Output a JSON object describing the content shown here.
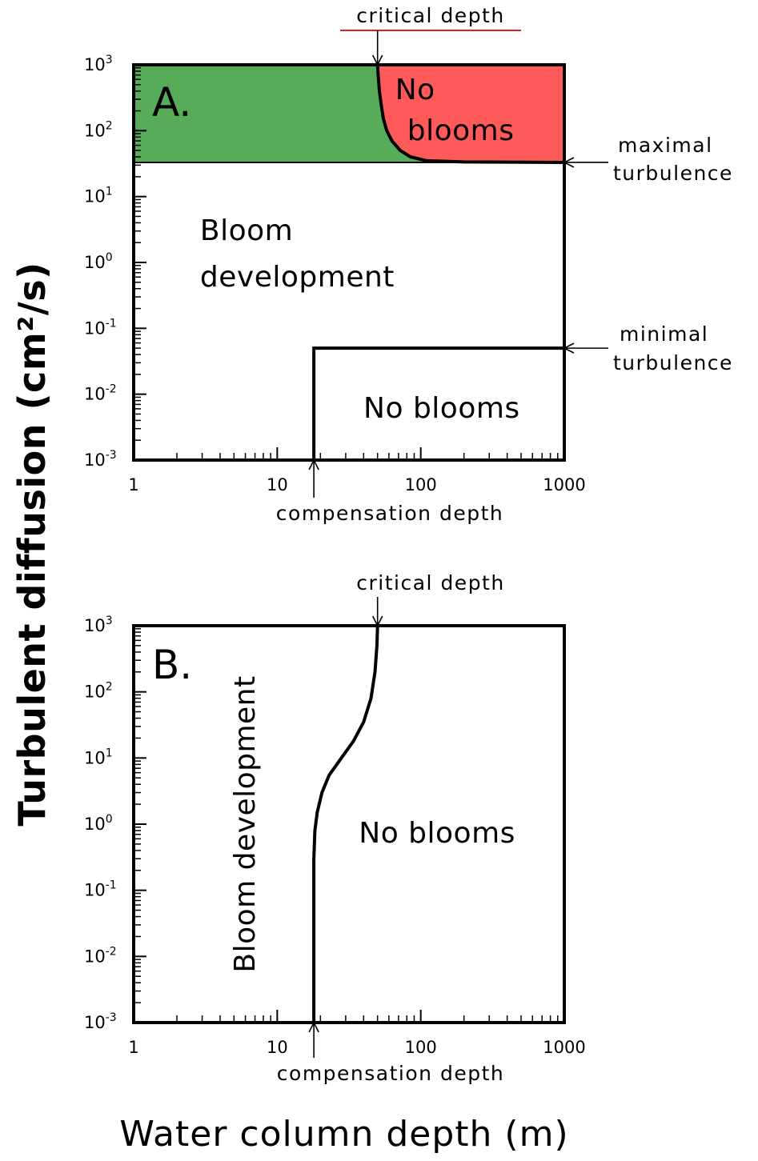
{
  "figure": {
    "ylabel": "Turbulent diffusion (cm²/s)",
    "xlabel": "Water column depth (m)"
  },
  "colors": {
    "bloom_zone_green": "#58ab58",
    "no_bloom_zone_red": "#ff5a5a",
    "panel_a_letter": "#0e4a0e",
    "panel_a_no_blooms_text": "#b00000",
    "critical_depth_underline": "#e02020"
  },
  "chart_data": [
    {
      "type": "area",
      "panel": "A.",
      "x_scale": "log",
      "y_scale": "log",
      "xlim": [
        1,
        1000
      ],
      "ylim": [
        0.001,
        1000
      ],
      "x_ticks": [
        {
          "value": 1,
          "label": "1"
        },
        {
          "value": 10,
          "label": "10"
        },
        {
          "value": 100,
          "label": "100"
        },
        {
          "value": 1000,
          "label": "1000"
        }
      ],
      "y_ticks": [
        {
          "value": 0.001,
          "base": "10",
          "exp": "-3"
        },
        {
          "value": 0.01,
          "base": "10",
          "exp": "-2"
        },
        {
          "value": 0.1,
          "base": "10",
          "exp": "-1"
        },
        {
          "value": 1,
          "base": "10",
          "exp": "0"
        },
        {
          "value": 10,
          "base": "10",
          "exp": "1"
        },
        {
          "value": 100,
          "base": "10",
          "exp": "2"
        },
        {
          "value": 1000,
          "base": "10",
          "exp": "3"
        }
      ],
      "maximal_turbulence": 33,
      "minimal_turbulence": 0.05,
      "compensation_depth": 18,
      "critical_curve": [
        [
          50,
          1000
        ],
        [
          50.5,
          700
        ],
        [
          51.5,
          400
        ],
        [
          53,
          250
        ],
        [
          55,
          150
        ],
        [
          58,
          100
        ],
        [
          63,
          70
        ],
        [
          72,
          50
        ],
        [
          85,
          40
        ],
        [
          110,
          35
        ],
        [
          200,
          33.5
        ],
        [
          1000,
          33
        ]
      ],
      "regions": [
        {
          "id": "bloom",
          "label": "Bloom development",
          "lines": [
            "Bloom",
            "development"
          ],
          "at": [
            2.9,
            0.9
          ]
        },
        {
          "id": "no-blooms-top",
          "label": "No blooms",
          "lines": [
            "No",
            "blooms"
          ],
          "at": [
            190,
            160
          ]
        },
        {
          "id": "no-blooms-bottom",
          "label": "No blooms",
          "lines": [
            "No blooms"
          ],
          "at": [
            140,
            0.0145
          ]
        }
      ],
      "annotations": [
        {
          "id": "critical-depth",
          "text": "critical depth",
          "points_to": [
            50,
            1000
          ],
          "lines": [
            "critical depth"
          ]
        },
        {
          "id": "maximal-turbulence",
          "text": "maximal turbulence",
          "points_to": [
            1000,
            33
          ],
          "lines": [
            "maximal",
            "turbulence"
          ]
        },
        {
          "id": "minimal-turbulence",
          "text": "minimal turbulence",
          "points_to": [
            1000,
            0.05
          ],
          "lines": [
            "minimal",
            "turbulence"
          ]
        },
        {
          "id": "compensation-depth",
          "text": "compensation depth",
          "points_to": [
            18,
            0.001
          ],
          "lines": [
            "compensation depth"
          ]
        }
      ]
    },
    {
      "type": "line",
      "panel": "B.",
      "x_scale": "log",
      "y_scale": "log",
      "xlim": [
        1,
        1000
      ],
      "ylim": [
        0.001,
        1000
      ],
      "x_ticks": [
        {
          "value": 1,
          "label": "1"
        },
        {
          "value": 10,
          "label": "10"
        },
        {
          "value": 100,
          "label": "100"
        },
        {
          "value": 1000,
          "label": "1000"
        }
      ],
      "y_ticks": [
        {
          "value": 0.001,
          "base": "10",
          "exp": "-3"
        },
        {
          "value": 0.01,
          "base": "10",
          "exp": "-2"
        },
        {
          "value": 0.1,
          "base": "10",
          "exp": "-1"
        },
        {
          "value": 1,
          "base": "10",
          "exp": "0"
        },
        {
          "value": 10,
          "base": "10",
          "exp": "1"
        },
        {
          "value": 100,
          "base": "10",
          "exp": "2"
        },
        {
          "value": 1000,
          "base": "10",
          "exp": "3"
        }
      ],
      "compensation_depth": 18,
      "critical_depth": 50,
      "critical_curve": [
        [
          18,
          0.001
        ],
        [
          18,
          0.05
        ],
        [
          18,
          0.3
        ],
        [
          18.3,
          0.8
        ],
        [
          19,
          1.5
        ],
        [
          20.5,
          3
        ],
        [
          23,
          5.5
        ],
        [
          28,
          10
        ],
        [
          34,
          18
        ],
        [
          40,
          35
        ],
        [
          45,
          80
        ],
        [
          48,
          200
        ],
        [
          49.5,
          500
        ],
        [
          50,
          1000
        ]
      ],
      "regions": [
        {
          "id": "bloom",
          "label": "Bloom development",
          "lines": [
            "Bloom development"
          ],
          "at": [
            3.6,
            0.22
          ]
        },
        {
          "id": "no-blooms",
          "label": "No blooms",
          "lines": [
            "No blooms"
          ],
          "at": [
            130,
            0.7
          ]
        }
      ],
      "annotations": [
        {
          "id": "critical-depth",
          "text": "critical depth",
          "points_to": [
            50,
            1000
          ],
          "lines": [
            "critical depth"
          ]
        },
        {
          "id": "compensation-depth",
          "text": "compensation depth",
          "points_to": [
            18,
            0.001
          ],
          "lines": [
            "compensation depth"
          ]
        }
      ]
    }
  ]
}
